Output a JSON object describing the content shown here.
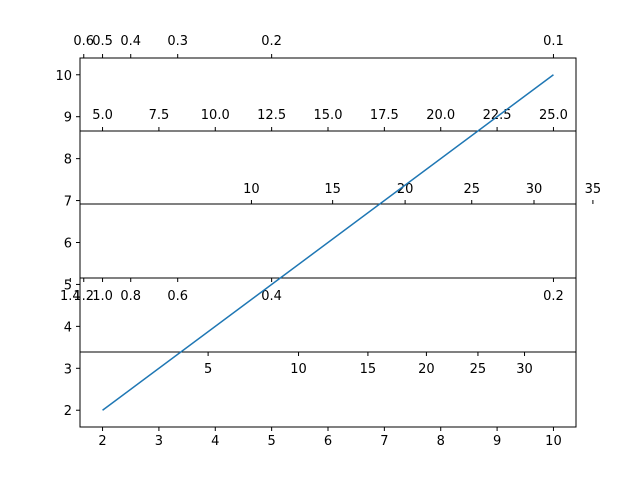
{
  "chart_data": {
    "type": "line",
    "title": "",
    "xlabel": "",
    "ylabel": "",
    "xlim": [
      1.6,
      10.4
    ],
    "ylim": [
      1.6,
      10.4
    ],
    "grid": false,
    "series": [
      {
        "color": "#1f77b4",
        "x": [
          2,
          10
        ],
        "y": [
          2,
          10
        ]
      }
    ],
    "primary_axes": {
      "x_ticks": [
        2,
        3,
        4,
        5,
        6,
        7,
        8,
        9,
        10
      ],
      "x_tick_labels": [
        "2",
        "3",
        "4",
        "5",
        "6",
        "7",
        "8",
        "9",
        "10"
      ],
      "y_ticks": [
        2,
        3,
        4,
        5,
        6,
        7,
        8,
        9,
        10
      ],
      "y_tick_labels": [
        "2",
        "3",
        "4",
        "5",
        "6",
        "7",
        "8",
        "9",
        "10"
      ]
    },
    "secondary_x_axes": [
      {
        "id": "top-reciprocal",
        "position": "top-of-plot",
        "scale": "reciprocal (1/x)",
        "ticks": [
          0.6,
          0.5,
          0.4,
          0.3,
          0.2,
          0.1
        ],
        "tick_labels": [
          "0.6",
          "0.5",
          "0.4",
          "0.3",
          "0.2",
          "0.1"
        ]
      },
      {
        "id": "band-times-2-5",
        "position": "inset band, upper",
        "scale": "2.5x",
        "ticks": [
          5.0,
          7.5,
          10.0,
          12.5,
          15.0,
          17.5,
          20.0,
          22.5,
          25.0
        ],
        "tick_labels": [
          "5.0",
          "7.5",
          "10.0",
          "12.5",
          "15.0",
          "17.5",
          "20.0",
          "22.5",
          "25.0"
        ]
      },
      {
        "id": "band-power",
        "position": "inset band, middle",
        "scale": "x^1.5",
        "ticks": [
          10,
          15,
          20,
          25,
          30,
          35
        ],
        "tick_labels": [
          "10",
          "15",
          "20",
          "25",
          "30",
          "35"
        ]
      },
      {
        "id": "band-reciprocal-2",
        "position": "inset band, lower",
        "scale": "2/x",
        "ticks": [
          1.4,
          1.2,
          1.0,
          0.8,
          0.6,
          0.4,
          0.2
        ],
        "tick_labels": [
          "1.4",
          "1.2",
          "1.0",
          "0.8",
          "0.6",
          "0.4",
          "0.2"
        ]
      },
      {
        "id": "bottom-band-squared",
        "position": "inset band, bottom",
        "scale": "x^2/3",
        "ticks": [
          5,
          10,
          15,
          20,
          25,
          30
        ],
        "tick_labels": [
          "5",
          "10",
          "15",
          "20",
          "25",
          "30"
        ]
      }
    ]
  }
}
